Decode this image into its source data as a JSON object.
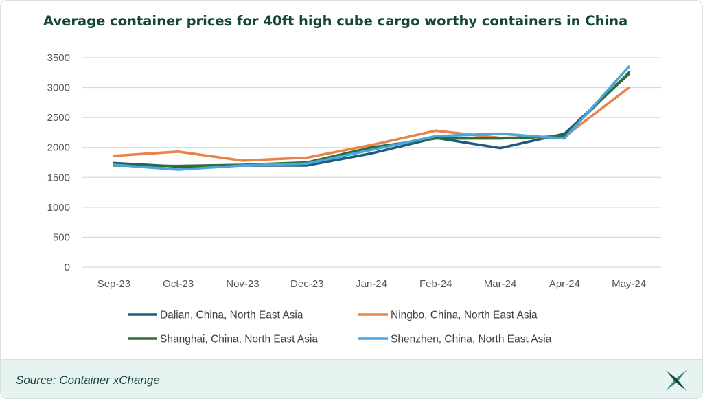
{
  "title": "Average container prices for 40ft high cube cargo worthy containers in China",
  "source": "Source: Container xChange",
  "logo_icon": "xchange-logo-icon",
  "colors": {
    "title": "#14463b",
    "footer_bg": "#e7f3f0",
    "grid": "#d9d9d9"
  },
  "chart_data": {
    "type": "line",
    "title": "Average container prices for 40ft high cube cargo worthy containers in China",
    "xlabel": "",
    "ylabel": "",
    "x": [
      "Sep-23",
      "Oct-23",
      "Nov-23",
      "Dec-23",
      "Jan-24",
      "Feb-24",
      "Mar-24",
      "Apr-24",
      "May-24"
    ],
    "ylim": [
      0,
      3500
    ],
    "yticks": [
      0,
      500,
      1000,
      1500,
      2000,
      2500,
      3000,
      3500
    ],
    "grid": true,
    "legend_position": "bottom",
    "series": [
      {
        "name": "Dalian, China, North East Asia",
        "color": "#1f5c7a",
        "values": [
          1740,
          1680,
          1700,
          1700,
          1900,
          2160,
          1990,
          2230,
          3230
        ]
      },
      {
        "name": "Ningbo, China, North East Asia",
        "color": "#e8834a",
        "values": [
          1860,
          1930,
          1780,
          1830,
          2040,
          2280,
          2160,
          2180,
          3000
        ]
      },
      {
        "name": "Shanghai, China, North East Asia",
        "color": "#2f6e35",
        "values": [
          1700,
          1690,
          1710,
          1750,
          2000,
          2150,
          2150,
          2190,
          3250
        ]
      },
      {
        "name": "Shenzhen, China, North East Asia",
        "color": "#4aa6df",
        "values": [
          1710,
          1630,
          1700,
          1730,
          1960,
          2190,
          2230,
          2150,
          3350
        ]
      }
    ]
  }
}
